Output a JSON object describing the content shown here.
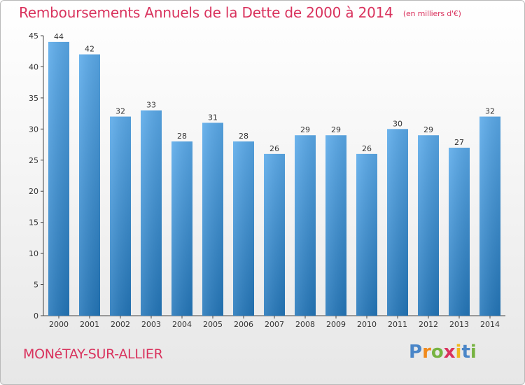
{
  "chart_data": {
    "type": "bar",
    "title": "Remboursements Annuels de la Dette de 2000 à 2014",
    "subtitle": "(en milliers d'€)",
    "categories": [
      "2000",
      "2001",
      "2002",
      "2003",
      "2004",
      "2005",
      "2006",
      "2007",
      "2008",
      "2009",
      "2010",
      "2011",
      "2012",
      "2013",
      "2014"
    ],
    "values": [
      44,
      42,
      32,
      33,
      28,
      31,
      28,
      26,
      29,
      29,
      26,
      30,
      29,
      27,
      32
    ],
    "ylim": [
      0,
      45
    ],
    "yticks": [
      0,
      5,
      10,
      15,
      20,
      25,
      30,
      35,
      40,
      45
    ],
    "grid": false,
    "colors": {
      "bar_top": "#5aaaea",
      "bar_bottom": "#2477ba",
      "text": "#d9325d"
    }
  },
  "footer": {
    "city": "MONéTAY-SUR-ALLIER"
  },
  "logo": {
    "letters": [
      "P",
      "r",
      "o",
      "x",
      "i",
      "t",
      "i"
    ],
    "colors": [
      "#4a86c8",
      "#f08a1c",
      "#77b341",
      "#d9325d",
      "#f0b81c",
      "#4a86c8",
      "#77b341"
    ]
  }
}
